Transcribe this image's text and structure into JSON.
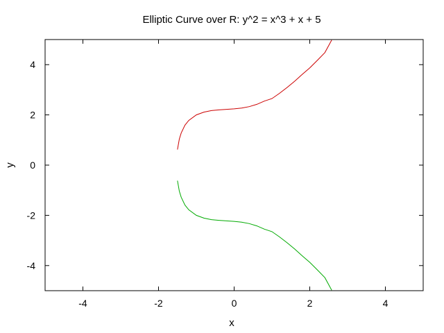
{
  "chart_data": {
    "type": "line",
    "title": "Elliptic Curve over R: y^2 = x^3 + x + 5",
    "xlabel": "x",
    "ylabel": "y",
    "xlim": [
      -5,
      5
    ],
    "ylim": [
      -5,
      5
    ],
    "xticks": [
      -4,
      -2,
      0,
      2,
      4
    ],
    "yticks": [
      -4,
      -2,
      0,
      2,
      4
    ],
    "grid": false,
    "legend": "none",
    "series": [
      {
        "color": "#cc0000",
        "x": [
          -1.5,
          -1.45,
          -1.4,
          -1.3,
          -1.2,
          -1.0,
          -0.8,
          -0.6,
          -0.4,
          -0.2,
          0.0,
          0.2,
          0.4,
          0.6,
          0.8,
          1.0,
          1.2,
          1.4,
          1.6,
          1.8,
          2.0,
          2.2,
          2.4,
          2.58
        ],
        "y": [
          0.62,
          1.04,
          1.28,
          1.59,
          1.78,
          2.0,
          2.11,
          2.17,
          2.2,
          2.22,
          2.24,
          2.27,
          2.33,
          2.42,
          2.55,
          2.65,
          2.86,
          3.09,
          3.34,
          3.61,
          3.87,
          4.17,
          4.48,
          4.98
        ]
      },
      {
        "color": "#00aa00",
        "x": [
          -1.5,
          -1.45,
          -1.4,
          -1.3,
          -1.2,
          -1.0,
          -0.8,
          -0.6,
          -0.4,
          -0.2,
          0.0,
          0.2,
          0.4,
          0.6,
          0.8,
          1.0,
          1.2,
          1.4,
          1.6,
          1.8,
          2.0,
          2.2,
          2.4,
          2.58
        ],
        "y": [
          -0.62,
          -1.04,
          -1.28,
          -1.59,
          -1.78,
          -2.0,
          -2.11,
          -2.17,
          -2.2,
          -2.22,
          -2.24,
          -2.27,
          -2.33,
          -2.42,
          -2.55,
          -2.65,
          -2.86,
          -3.09,
          -3.34,
          -3.61,
          -3.87,
          -4.17,
          -4.48,
          -4.98
        ]
      }
    ]
  }
}
